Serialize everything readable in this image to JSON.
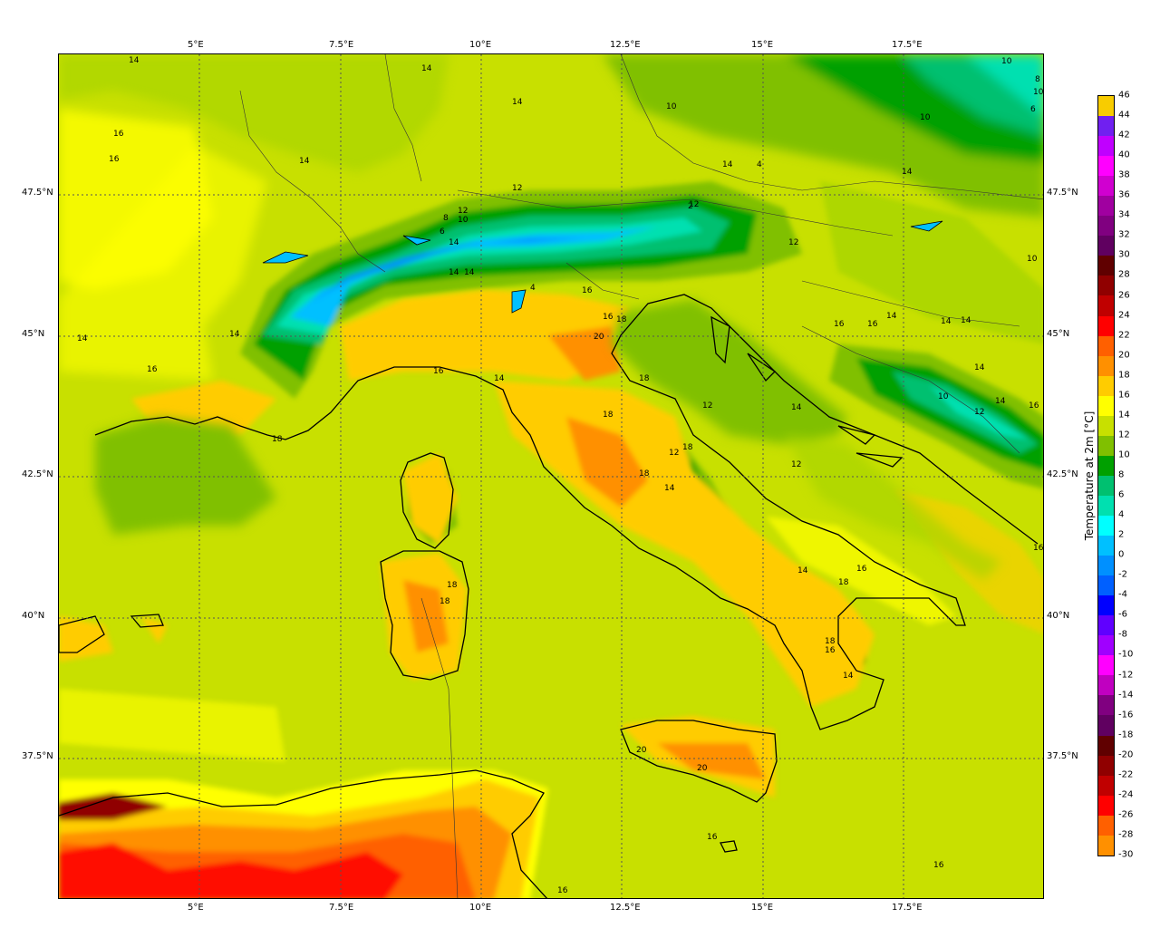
{
  "map": {
    "lon_ticks": [
      "5°E",
      "7.5°E",
      "10°E",
      "12.5°E",
      "15°E",
      "17.5°E"
    ],
    "lat_ticks": [
      "47.5°N",
      "45°N",
      "42.5°N",
      "40°N",
      "37.5°N"
    ],
    "contour_labels": [
      "14",
      "14",
      "16",
      "16",
      "14",
      "14",
      "14",
      "12",
      "10",
      "8",
      "6",
      "4",
      "2",
      "12",
      "14",
      "14",
      "16",
      "16",
      "18",
      "20",
      "14",
      "14",
      "16",
      "18",
      "16",
      "14",
      "12",
      "10",
      "10",
      "10",
      "14",
      "12",
      "10",
      "10",
      "8",
      "6",
      "4",
      "14",
      "14",
      "14",
      "14",
      "16",
      "14",
      "16",
      "18",
      "18",
      "18",
      "18",
      "14",
      "12",
      "12",
      "14",
      "16",
      "14",
      "18",
      "16",
      "18",
      "18",
      "20",
      "20",
      "16",
      "16",
      "16",
      "10",
      "12",
      "14",
      "16",
      "18",
      "14",
      "12",
      "16"
    ]
  },
  "colorbar": {
    "title": "Temperature at 2m [°C]",
    "labels": [
      "46",
      "44",
      "42",
      "40",
      "38",
      "36",
      "34",
      "32",
      "30",
      "28",
      "26",
      "24",
      "22",
      "20",
      "18",
      "16",
      "14",
      "12",
      "10",
      "8",
      "6",
      "4",
      "2",
      "0",
      "-2",
      "-4",
      "-6",
      "-8",
      "-10",
      "-12",
      "-14",
      "-16",
      "-18",
      "-20",
      "-22",
      "-24",
      "-26",
      "-28",
      "-30"
    ],
    "colors": [
      "#f8cc00",
      "#7020f0",
      "#c000ff",
      "#ff00ff",
      "#d000d0",
      "#a000a0",
      "#800080",
      "#600060",
      "#600000",
      "#900000",
      "#c00000",
      "#ff0000",
      "#ff6000",
      "#ff9000",
      "#ffcc00",
      "#ffff00",
      "#c8e000",
      "#80c000",
      "#00a000",
      "#00c070",
      "#00e0b0",
      "#00ffff",
      "#00c0ff",
      "#0090ff",
      "#0060ff",
      "#0000ff",
      "#6000ff",
      "#a000ff",
      "#ff00ff",
      "#c000c0",
      "#800080",
      "#600060",
      "#600000",
      "#900000",
      "#c00000",
      "#ff0000",
      "#ff6000",
      "#ff9000",
      "#ffcc00"
    ]
  }
}
